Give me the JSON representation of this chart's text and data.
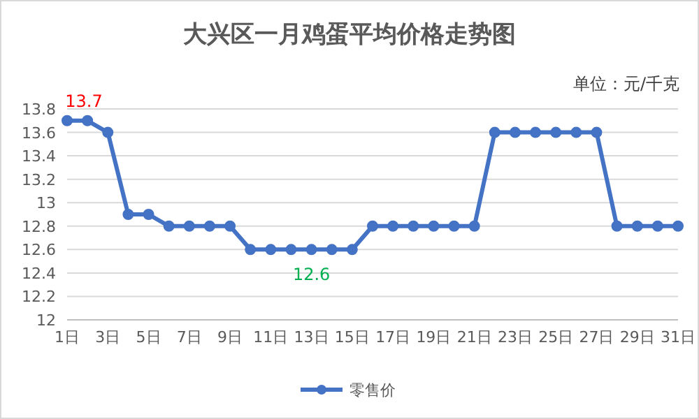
{
  "chart_data": {
    "type": "line",
    "title": "大兴区一月鸡蛋平均价格走势图",
    "annotations": [
      "单位：元/千克"
    ],
    "categories": [
      "1日",
      null,
      "3日",
      null,
      "5日",
      null,
      "7日",
      null,
      "9日",
      null,
      "11日",
      null,
      "13日",
      null,
      "15日",
      null,
      "17日",
      null,
      "19日",
      null,
      "21日",
      null,
      "23日",
      null,
      "25日",
      null,
      "27日",
      null,
      "29日",
      null,
      "31日"
    ],
    "series": [
      {
        "name": "零售价",
        "color": "#4472c4",
        "values": [
          13.7,
          13.7,
          13.6,
          12.9,
          12.9,
          12.8,
          12.8,
          12.8,
          12.8,
          12.6,
          12.6,
          12.6,
          12.6,
          12.6,
          12.6,
          12.8,
          12.8,
          12.8,
          12.8,
          12.8,
          12.8,
          13.6,
          13.6,
          13.6,
          13.6,
          13.6,
          13.6,
          12.8,
          12.8,
          12.8,
          12.8
        ],
        "value_labels": [
          "13.7",
          null,
          null,
          null,
          null,
          null,
          null,
          null,
          null,
          null,
          null,
          null,
          "12.6",
          null,
          null,
          null,
          null,
          null,
          null,
          null,
          null,
          null,
          null,
          null,
          null,
          null,
          null,
          null,
          null,
          null,
          null
        ]
      }
    ],
    "ylim": [
      12,
      13.8
    ],
    "yticks": [
      12,
      12.2,
      12.4,
      12.6,
      12.8,
      13,
      13.2,
      13.4,
      13.6,
      13.8
    ],
    "grid": "y",
    "legend": "bottom",
    "marker": "circle",
    "line_style": "solid"
  }
}
